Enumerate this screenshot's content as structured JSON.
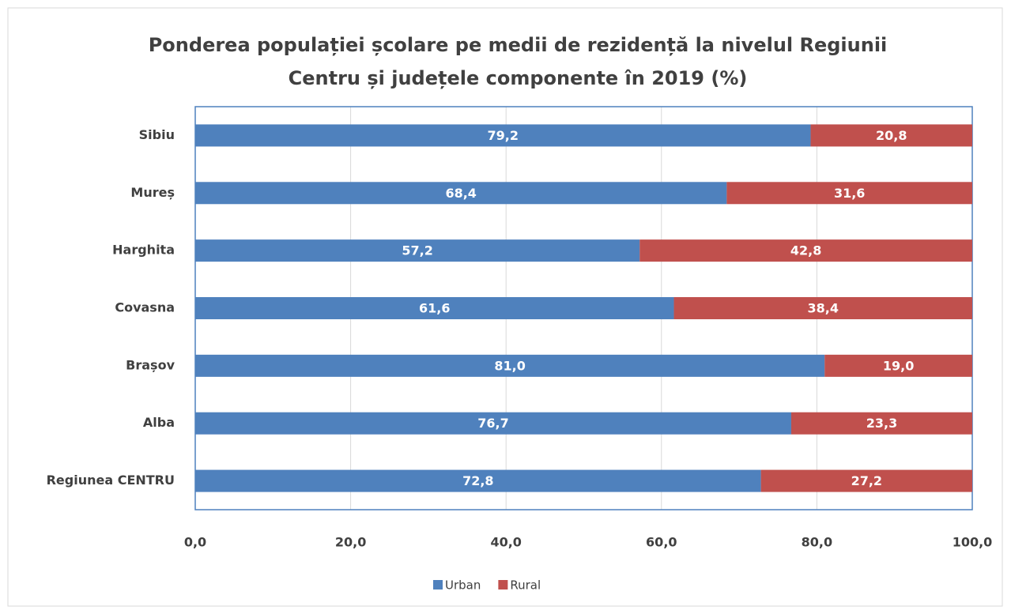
{
  "chart_data": {
    "type": "stacked-bar-horizontal",
    "title": [
      "Ponderea populației școlare pe medii de rezidență la nivelul Regiunii",
      "Centru și județele componente în 2019 (%)"
    ],
    "categories": [
      "Sibiu",
      "Mureș",
      "Harghita",
      "Covasna",
      "Brașov",
      "Alba",
      "Regiunea CENTRU"
    ],
    "series": [
      {
        "name": "Urban",
        "color": "#4f81bd",
        "values": [
          79.2,
          68.4,
          57.2,
          61.6,
          81.0,
          76.7,
          72.8
        ],
        "value_labels": [
          "79,2",
          "68,4",
          "57,2",
          "61,6",
          "81,0",
          "76,7",
          "72,8"
        ]
      },
      {
        "name": "Rural",
        "color": "#c0504d",
        "values": [
          20.8,
          31.6,
          42.8,
          38.4,
          19.0,
          23.3,
          27.2
        ],
        "value_labels": [
          "20,8",
          "31,6",
          "42,8",
          "38,4",
          "19,0",
          "23,3",
          "27,2"
        ]
      }
    ],
    "xlim": [
      0,
      100
    ],
    "xticks": [
      {
        "value": 0,
        "label": "0,0"
      },
      {
        "value": 20,
        "label": "20,0"
      },
      {
        "value": 40,
        "label": "40,0"
      },
      {
        "value": 60,
        "label": "60,0"
      },
      {
        "value": 80,
        "label": "80,0"
      },
      {
        "value": 100,
        "label": "100,0"
      }
    ],
    "grid": true,
    "legend": "bottom"
  }
}
